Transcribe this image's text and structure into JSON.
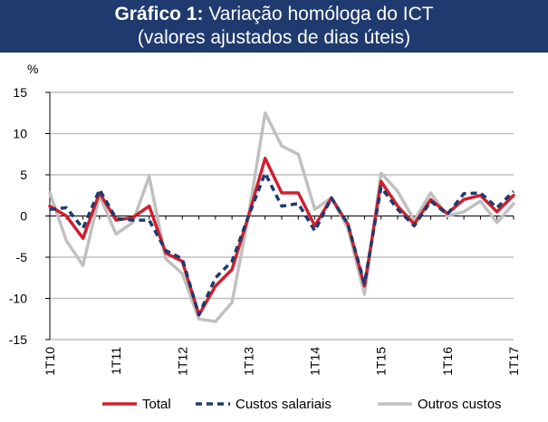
{
  "title": {
    "prefix": "Gráfico 1:",
    "main": "Variação homóloga do ICT",
    "subtitle": "(valores ajustados de dias úteis)"
  },
  "chart_data": {
    "type": "line",
    "ylabel": "%",
    "ylim": [
      -15,
      15
    ],
    "yticks": [
      -15,
      -10,
      -5,
      0,
      5,
      10,
      15
    ],
    "xlabels": [
      "1T10",
      "1T11",
      "1T12",
      "1T13",
      "1T14",
      "1T15",
      "1T16",
      "1T17"
    ],
    "xlabel_index": [
      0,
      4,
      8,
      12,
      16,
      20,
      24,
      28
    ],
    "x": [
      "1T10",
      "2T10",
      "3T10",
      "4T10",
      "1T11",
      "2T11",
      "3T11",
      "4T11",
      "1T12",
      "2T12",
      "3T12",
      "4T12",
      "1T13",
      "2T13",
      "3T13",
      "4T13",
      "1T14",
      "2T14",
      "3T14",
      "4T14",
      "1T15",
      "2T15",
      "3T15",
      "4T15",
      "1T16",
      "2T16",
      "3T16",
      "4T16",
      "1T17"
    ],
    "series": [
      {
        "name": "Total",
        "color": "#d0202e",
        "dash": "",
        "values": [
          1.2,
          0.0,
          -2.7,
          2.8,
          -0.5,
          -0.2,
          1.2,
          -4.5,
          -5.5,
          -12.0,
          -8.5,
          -6.5,
          0.0,
          7.0,
          2.8,
          2.8,
          -1.2,
          2.2,
          -1.0,
          -8.5,
          4.2,
          1.2,
          -1.0,
          2.0,
          0.3,
          2.0,
          2.5,
          0.5,
          2.5
        ]
      },
      {
        "name": "Custos salariais",
        "color": "#1f3a6e",
        "dash": "7,5",
        "values": [
          0.8,
          1.0,
          -1.5,
          3.2,
          -0.3,
          -0.5,
          -0.5,
          -4.2,
          -5.2,
          -12.0,
          -7.5,
          -5.5,
          0.0,
          5.2,
          1.2,
          1.5,
          -1.8,
          2.2,
          -1.0,
          -8.2,
          3.5,
          0.8,
          -1.2,
          1.8,
          0.2,
          2.7,
          2.8,
          1.0,
          3.0
        ]
      },
      {
        "name": "Outros custos",
        "color": "#c0c0c0",
        "dash": "",
        "values": [
          2.8,
          -3.0,
          -6.0,
          2.5,
          -2.2,
          -0.8,
          4.8,
          -5.2,
          -7.0,
          -12.5,
          -12.8,
          -10.5,
          0.0,
          12.5,
          8.5,
          7.5,
          0.8,
          2.2,
          -1.5,
          -9.5,
          5.2,
          3.0,
          -0.5,
          2.8,
          0.0,
          0.5,
          1.8,
          -0.8,
          1.5
        ]
      }
    ]
  }
}
